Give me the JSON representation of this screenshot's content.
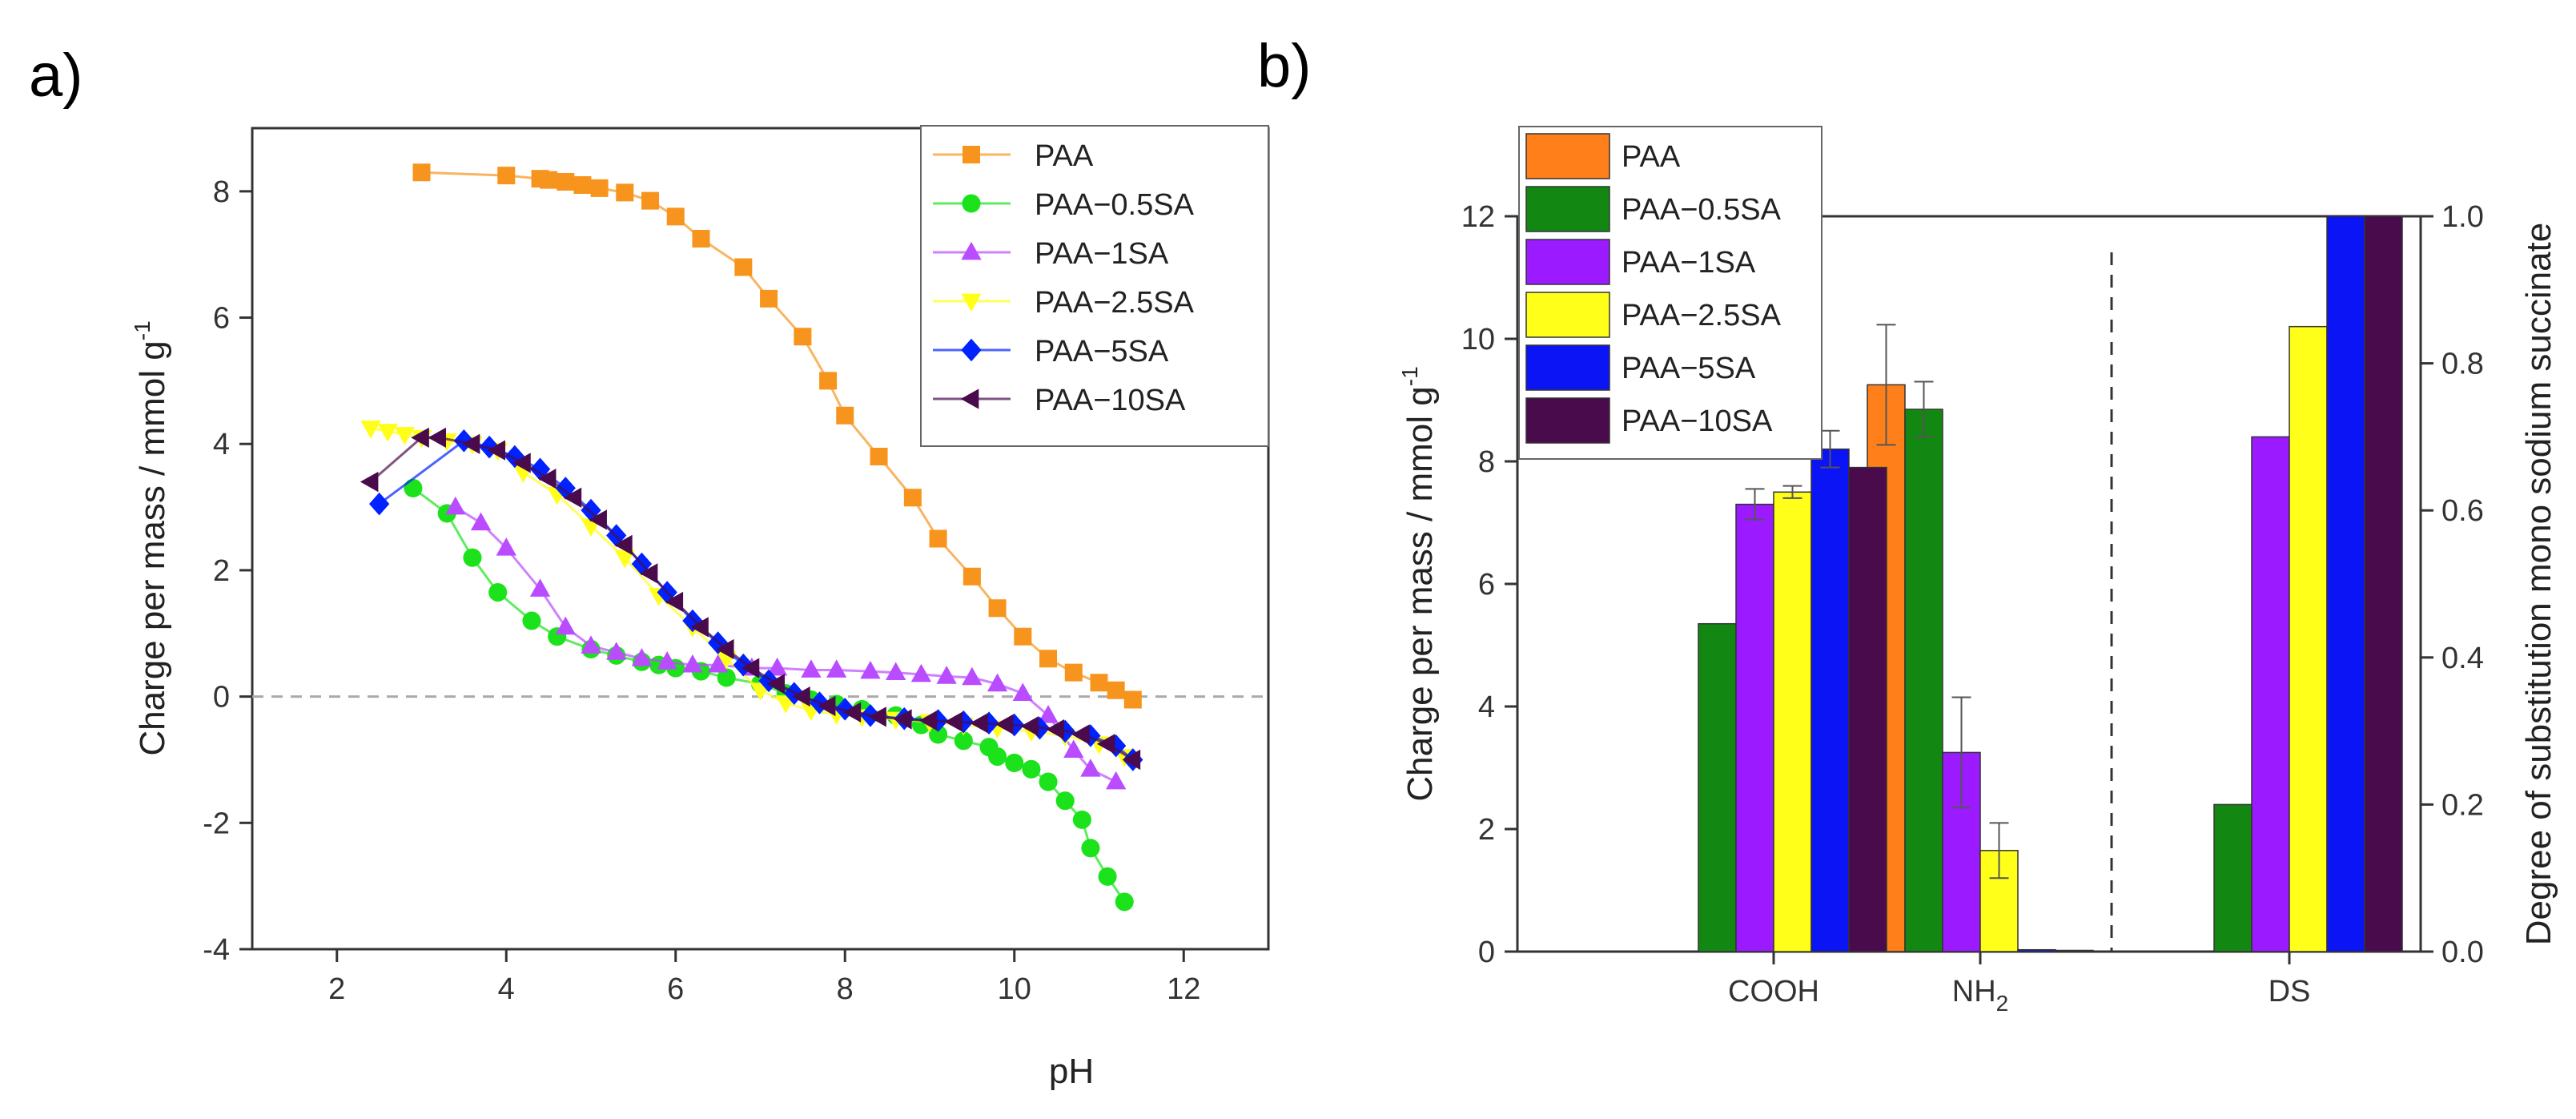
{
  "chart_data": [
    {
      "panel": "a)",
      "type": "scatter",
      "xlabel": "pH",
      "ylabel_main": "Charge per mass  / mmol g",
      "ylabel_sup": "-1",
      "xlim": [
        1,
        13
      ],
      "ylim": [
        -4,
        9
      ],
      "xticks": [
        2,
        4,
        6,
        8,
        10,
        12
      ],
      "yticks": [
        -4,
        -2,
        0,
        2,
        4,
        6,
        8
      ],
      "zero_line": 0,
      "legend_position": "top-right",
      "series": [
        {
          "name": "PAA",
          "color": "#f7941d",
          "marker": "square",
          "x": [
            3.0,
            4.0,
            4.4,
            4.5,
            4.7,
            4.9,
            5.1,
            5.4,
            5.7,
            6.0,
            6.3,
            6.8,
            7.1,
            7.5,
            7.8,
            8.0,
            8.4,
            8.8,
            9.1,
            9.5,
            9.8,
            10.1,
            10.4,
            10.7,
            11.0,
            11.2,
            11.4
          ],
          "y": [
            8.3,
            8.25,
            8.2,
            8.18,
            8.15,
            8.1,
            8.05,
            7.98,
            7.85,
            7.6,
            7.25,
            6.8,
            6.3,
            5.7,
            5.0,
            4.45,
            3.8,
            3.15,
            2.5,
            1.9,
            1.4,
            0.95,
            0.6,
            0.38,
            0.22,
            0.1,
            -0.05
          ]
        },
        {
          "name": "PAA−0.5SA",
          "color": "#1be21b",
          "marker": "circle",
          "x": [
            2.9,
            3.3,
            3.6,
            3.9,
            4.3,
            4.6,
            5.0,
            5.3,
            5.6,
            5.8,
            6.0,
            6.3,
            6.6,
            7.0,
            7.3,
            7.6,
            7.9,
            8.2,
            8.6,
            8.9,
            9.1,
            9.4,
            9.7,
            9.8,
            10.0,
            10.2,
            10.4,
            10.6,
            10.8,
            10.9,
            11.1,
            11.3
          ],
          "y": [
            3.3,
            2.9,
            2.2,
            1.65,
            1.2,
            0.95,
            0.75,
            0.65,
            0.55,
            0.5,
            0.45,
            0.4,
            0.3,
            0.2,
            0.05,
            -0.05,
            -0.12,
            -0.2,
            -0.3,
            -0.45,
            -0.6,
            -0.7,
            -0.8,
            -0.95,
            -1.05,
            -1.15,
            -1.35,
            -1.65,
            -1.95,
            -2.4,
            -2.85,
            -3.25
          ]
        },
        {
          "name": "PAA−1SA",
          "color": "#b94cff",
          "marker": "triangle-up",
          "x": [
            3.4,
            3.7,
            4.0,
            4.4,
            4.7,
            5.0,
            5.3,
            5.6,
            5.9,
            6.2,
            6.5,
            6.9,
            7.2,
            7.6,
            7.9,
            8.3,
            8.6,
            8.9,
            9.2,
            9.5,
            9.8,
            10.1,
            10.4,
            10.7,
            10.9,
            11.2
          ],
          "y": [
            3.0,
            2.75,
            2.35,
            1.7,
            1.1,
            0.8,
            0.7,
            0.6,
            0.55,
            0.5,
            0.5,
            0.45,
            0.45,
            0.42,
            0.42,
            0.4,
            0.38,
            0.35,
            0.32,
            0.3,
            0.2,
            0.05,
            -0.3,
            -0.85,
            -1.15,
            -1.35
          ]
        },
        {
          "name": "PAA−2.5SA",
          "color": "#ffff1a",
          "marker": "triangle-down",
          "x": [
            2.4,
            2.6,
            2.8,
            3.0,
            3.3,
            3.6,
            3.9,
            4.2,
            4.6,
            5.0,
            5.4,
            5.8,
            6.2,
            6.6,
            7.0,
            7.3,
            7.6,
            7.9,
            8.2,
            8.6,
            9.0,
            9.4,
            9.8,
            10.2,
            10.6,
            11.0,
            11.3
          ],
          "y": [
            4.25,
            4.2,
            4.15,
            4.1,
            4.05,
            4.0,
            3.9,
            3.55,
            3.2,
            2.7,
            2.2,
            1.6,
            1.1,
            0.6,
            0.1,
            -0.1,
            -0.22,
            -0.28,
            -0.32,
            -0.36,
            -0.4,
            -0.45,
            -0.5,
            -0.55,
            -0.62,
            -0.75,
            -0.95
          ]
        },
        {
          "name": "PAA−5SA",
          "color": "#0022ff",
          "marker": "diamond",
          "x": [
            2.5,
            3.5,
            3.8,
            4.1,
            4.4,
            4.7,
            5.0,
            5.3,
            5.6,
            5.9,
            6.2,
            6.5,
            6.8,
            7.1,
            7.4,
            7.7,
            8.0,
            8.3,
            8.7,
            9.1,
            9.4,
            9.7,
            10.0,
            10.3,
            10.6,
            10.9,
            11.2,
            11.4
          ],
          "y": [
            3.05,
            4.05,
            3.95,
            3.8,
            3.6,
            3.3,
            2.95,
            2.55,
            2.1,
            1.65,
            1.2,
            0.85,
            0.5,
            0.25,
            0.05,
            -0.1,
            -0.2,
            -0.3,
            -0.35,
            -0.38,
            -0.4,
            -0.42,
            -0.45,
            -0.5,
            -0.55,
            -0.62,
            -0.78,
            -1.0
          ]
        },
        {
          "name": "PAA−10SA",
          "color": "#4a0b4d",
          "marker": "triangle-left",
          "x": [
            2.4,
            3.0,
            3.2,
            3.6,
            3.9,
            4.2,
            4.5,
            4.8,
            5.1,
            5.4,
            5.7,
            6.0,
            6.3,
            6.6,
            6.9,
            7.2,
            7.5,
            7.8,
            8.1,
            8.4,
            8.7,
            9.0,
            9.3,
            9.6,
            9.9,
            10.2,
            10.5,
            10.8,
            11.1,
            11.4
          ],
          "y": [
            3.4,
            4.1,
            4.1,
            4.0,
            3.9,
            3.7,
            3.45,
            3.15,
            2.8,
            2.4,
            1.95,
            1.5,
            1.1,
            0.75,
            0.45,
            0.2,
            0.0,
            -0.15,
            -0.25,
            -0.32,
            -0.36,
            -0.38,
            -0.4,
            -0.42,
            -0.44,
            -0.47,
            -0.52,
            -0.6,
            -0.75,
            -1.0
          ]
        }
      ]
    },
    {
      "panel": "b)",
      "type": "bar",
      "categories": [
        "COOH",
        "NH",
        "DS"
      ],
      "category_subscripts": [
        "",
        "2",
        ""
      ],
      "ylabel_left_main": "Charge per mass / mmol g",
      "ylabel_left_sup": "-1",
      "ylabel_right": "Degree of substitution mono sodium succinate",
      "ylim_left": [
        0,
        12
      ],
      "ylim_right": [
        0,
        1.0
      ],
      "yticks_left": [
        0,
        2,
        4,
        6,
        8,
        10,
        12
      ],
      "yticks_right": [
        "0.0",
        "0.2",
        "0.4",
        "0.6",
        "0.8",
        "1.0"
      ],
      "separator_after_category": 1,
      "legend_position": "top-left",
      "series": [
        {
          "name": "PAA",
          "color": "#ff7f1a",
          "values": [
            null,
            9.25,
            null
          ],
          "errors": [
            null,
            0.98,
            null
          ]
        },
        {
          "name": "PAA−0.5SA",
          "color": "#128812",
          "values": [
            5.35,
            8.85,
            0.2
          ],
          "errors": [
            null,
            0.45,
            null
          ]
        },
        {
          "name": "PAA−1SA",
          "color": "#9b1aff",
          "values": [
            7.3,
            3.25,
            0.7
          ],
          "errors": [
            0.25,
            0.9,
            null
          ]
        },
        {
          "name": "PAA−2.5SA",
          "color": "#ffff1a",
          "values": [
            7.5,
            1.65,
            0.85
          ],
          "errors": [
            0.1,
            0.45,
            null
          ]
        },
        {
          "name": "PAA−5SA",
          "color": "#0a14f5",
          "values": [
            8.2,
            0.03,
            1.0
          ],
          "errors": [
            0.3,
            null,
            null
          ]
        },
        {
          "name": "PAA−10SA",
          "color": "#4a0b4d",
          "values": [
            7.9,
            0.02,
            1.0
          ],
          "errors": [
            null,
            null,
            null
          ]
        }
      ],
      "value_axis_by_category": [
        "left",
        "left",
        "right"
      ]
    }
  ]
}
